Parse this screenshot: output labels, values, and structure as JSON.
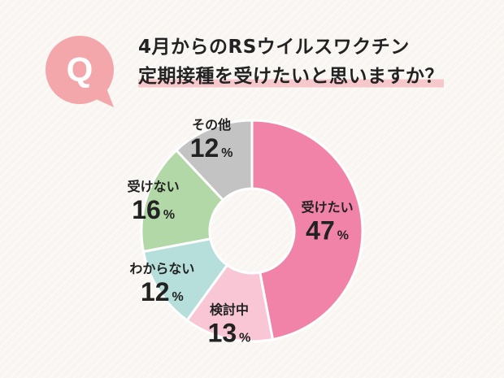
{
  "badge": {
    "letter": "Q",
    "color": "#f4a7ab"
  },
  "question": {
    "line1": "4月からのRSウイルスワクチン",
    "line2": "定期接種を受けたいと思いますか？",
    "highlight_color": "#f6c8cc"
  },
  "chart_data": {
    "type": "pie",
    "variant": "donut",
    "unit": "%",
    "slices": [
      {
        "label": "受けたい",
        "value": 47,
        "color": "#f283a8"
      },
      {
        "label": "検討中",
        "value": 13,
        "color": "#f9c6d6"
      },
      {
        "label": "わからない",
        "value": 12,
        "color": "#b6dfdb"
      },
      {
        "label": "受けない",
        "value": 16,
        "color": "#b2d8a7"
      },
      {
        "label": "その他",
        "value": 12,
        "color": "#c3c3c3"
      }
    ]
  }
}
